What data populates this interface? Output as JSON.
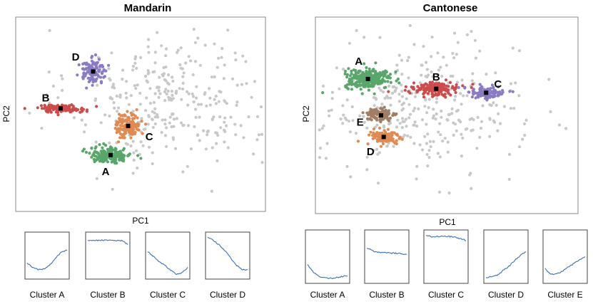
{
  "chart_data": [
    {
      "type": "scatter",
      "title": "Mandarin",
      "xlabel": "PC1",
      "ylabel": "PC2",
      "xlim": [
        -5,
        5
      ],
      "ylim": [
        -5,
        5
      ],
      "grid": false,
      "clusters": [
        {
          "label": "A",
          "color": "#59a66a",
          "centroid": [
            -1.2,
            -2.1
          ],
          "spread": [
            0.75,
            0.35
          ],
          "count": 200
        },
        {
          "label": "B",
          "color": "#cd4b4b",
          "centroid": [
            -3.2,
            0.3
          ],
          "spread": [
            0.9,
            0.18
          ],
          "count": 110
        },
        {
          "label": "C",
          "color": "#e08a52",
          "centroid": [
            -0.5,
            -0.6
          ],
          "spread": [
            0.45,
            0.6
          ],
          "count": 140
        },
        {
          "label": "D",
          "color": "#8b7bc2",
          "centroid": [
            -1.9,
            2.2
          ],
          "spread": [
            0.5,
            0.55
          ],
          "count": 120
        }
      ],
      "unassigned": {
        "color": "#c8c8c8",
        "count": 320,
        "region": "upper-right"
      }
    },
    {
      "type": "scatter",
      "title": "Cantonese",
      "xlabel": "PC1",
      "ylabel": "PC2",
      "xlim": [
        -5,
        5
      ],
      "ylim": [
        -5,
        5
      ],
      "grid": false,
      "clusters": [
        {
          "label": "A",
          "color": "#59a66a",
          "centroid": [
            -3.0,
            1.85
          ],
          "spread": [
            0.8,
            0.45
          ],
          "count": 260
        },
        {
          "label": "B",
          "color": "#cd4b4b",
          "centroid": [
            -0.4,
            1.35
          ],
          "spread": [
            0.8,
            0.3
          ],
          "count": 150
        },
        {
          "label": "C",
          "color": "#8b7bc2",
          "centroid": [
            1.5,
            1.15
          ],
          "spread": [
            0.7,
            0.3
          ],
          "count": 100
        },
        {
          "label": "D",
          "color": "#e08a52",
          "centroid": [
            -2.4,
            -1.1
          ],
          "spread": [
            0.55,
            0.4
          ],
          "count": 100
        },
        {
          "label": "E",
          "color": "#a17e63",
          "centroid": [
            -2.5,
            0.0
          ],
          "spread": [
            0.55,
            0.35
          ],
          "count": 90
        }
      ],
      "unassigned": {
        "color": "#c8c8c8",
        "count": 330,
        "region": "center"
      }
    },
    {
      "type": "line",
      "group": "Mandarin",
      "series": [
        {
          "name": "Cluster A",
          "values": [
            0.32,
            0.22,
            0.17,
            0.19,
            0.28,
            0.45,
            0.58,
            0.63
          ]
        },
        {
          "name": "Cluster B",
          "values": [
            0.86,
            0.85,
            0.86,
            0.86,
            0.86,
            0.85,
            0.85,
            0.76
          ]
        },
        {
          "name": "Cluster C",
          "values": [
            0.6,
            0.48,
            0.36,
            0.27,
            0.16,
            0.06,
            0.1,
            0.22
          ]
        },
        {
          "name": "Cluster D",
          "values": [
            0.92,
            0.86,
            0.75,
            0.62,
            0.45,
            0.28,
            0.18,
            0.16
          ]
        }
      ]
    },
    {
      "type": "line",
      "group": "Cantonese",
      "series": [
        {
          "name": "Cluster A",
          "values": [
            0.34,
            0.18,
            0.1,
            0.07,
            0.06,
            0.07,
            0.09,
            0.12
          ]
        },
        {
          "name": "Cluster B",
          "values": [
            0.68,
            0.62,
            0.59,
            0.58,
            0.57,
            0.57,
            0.56,
            0.55
          ]
        },
        {
          "name": "Cluster C",
          "values": [
            0.93,
            0.91,
            0.91,
            0.92,
            0.91,
            0.9,
            0.87,
            0.83
          ]
        },
        {
          "name": "Cluster D",
          "values": [
            0.06,
            0.1,
            0.12,
            0.22,
            0.3,
            0.42,
            0.52,
            0.6
          ]
        },
        {
          "name": "Cluster E",
          "values": [
            0.26,
            0.14,
            0.15,
            0.2,
            0.28,
            0.36,
            0.44,
            0.5
          ]
        }
      ]
    }
  ]
}
